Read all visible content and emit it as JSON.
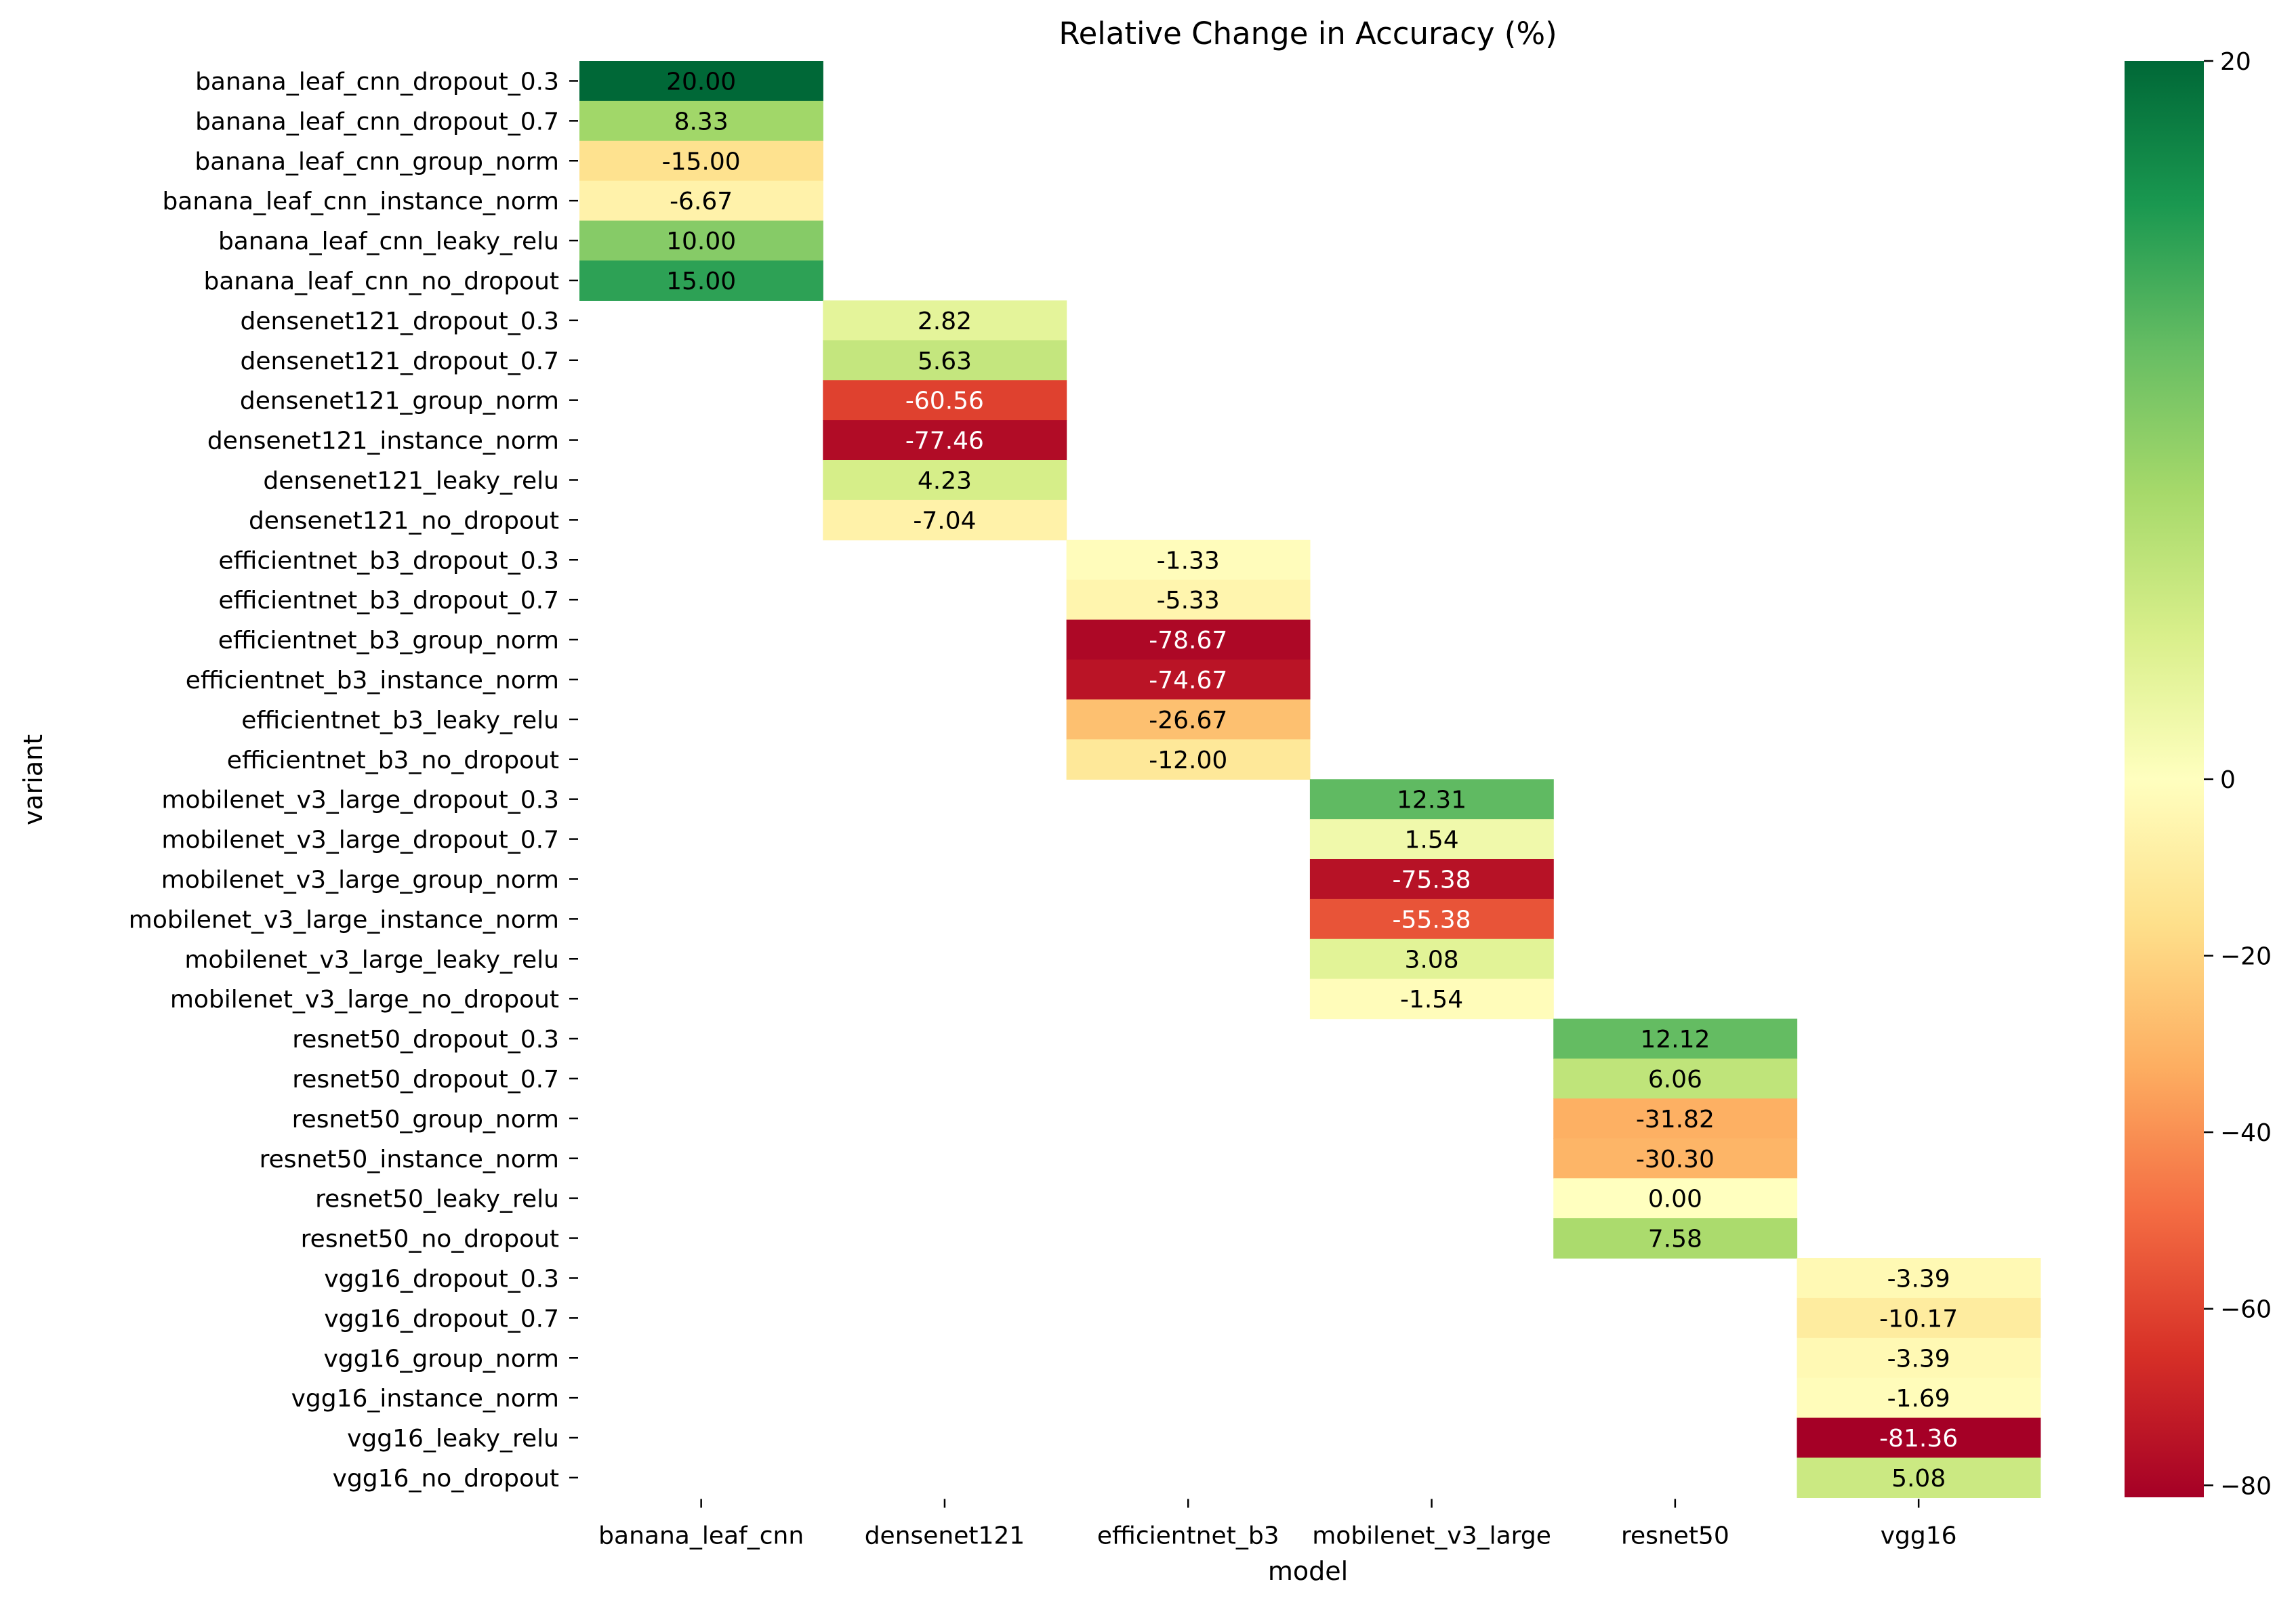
{
  "chart_data": {
    "type": "heatmap",
    "title": "Relative Change in Accuracy (%)",
    "xlabel": "model",
    "ylabel": "variant",
    "columns": [
      "banana_leaf_cnn",
      "densenet121",
      "efficientnet_b3",
      "mobilenet_v3_large",
      "resnet50",
      "vgg16"
    ],
    "rows": [
      "banana_leaf_cnn_dropout_0.3",
      "banana_leaf_cnn_dropout_0.7",
      "banana_leaf_cnn_group_norm",
      "banana_leaf_cnn_instance_norm",
      "banana_leaf_cnn_leaky_relu",
      "banana_leaf_cnn_no_dropout",
      "densenet121_dropout_0.3",
      "densenet121_dropout_0.7",
      "densenet121_group_norm",
      "densenet121_instance_norm",
      "densenet121_leaky_relu",
      "densenet121_no_dropout",
      "efficientnet_b3_dropout_0.3",
      "efficientnet_b3_dropout_0.7",
      "efficientnet_b3_group_norm",
      "efficientnet_b3_instance_norm",
      "efficientnet_b3_leaky_relu",
      "efficientnet_b3_no_dropout",
      "mobilenet_v3_large_dropout_0.3",
      "mobilenet_v3_large_dropout_0.7",
      "mobilenet_v3_large_group_norm",
      "mobilenet_v3_large_instance_norm",
      "mobilenet_v3_large_leaky_relu",
      "mobilenet_v3_large_no_dropout",
      "resnet50_dropout_0.3",
      "resnet50_dropout_0.7",
      "resnet50_group_norm",
      "resnet50_instance_norm",
      "resnet50_leaky_relu",
      "resnet50_no_dropout",
      "vgg16_dropout_0.3",
      "vgg16_dropout_0.7",
      "vgg16_group_norm",
      "vgg16_instance_norm",
      "vgg16_leaky_relu",
      "vgg16_no_dropout"
    ],
    "cells": [
      {
        "row": 0,
        "col": 0,
        "value": 20.0,
        "label": "20.00"
      },
      {
        "row": 1,
        "col": 0,
        "value": 8.33,
        "label": "8.33"
      },
      {
        "row": 2,
        "col": 0,
        "value": -15.0,
        "label": "-15.00"
      },
      {
        "row": 3,
        "col": 0,
        "value": -6.67,
        "label": "-6.67"
      },
      {
        "row": 4,
        "col": 0,
        "value": 10.0,
        "label": "10.00"
      },
      {
        "row": 5,
        "col": 0,
        "value": 15.0,
        "label": "15.00"
      },
      {
        "row": 6,
        "col": 1,
        "value": 2.82,
        "label": "2.82"
      },
      {
        "row": 7,
        "col": 1,
        "value": 5.63,
        "label": "5.63"
      },
      {
        "row": 8,
        "col": 1,
        "value": -60.56,
        "label": "-60.56"
      },
      {
        "row": 9,
        "col": 1,
        "value": -77.46,
        "label": "-77.46"
      },
      {
        "row": 10,
        "col": 1,
        "value": 4.23,
        "label": "4.23"
      },
      {
        "row": 11,
        "col": 1,
        "value": -7.04,
        "label": "-7.04"
      },
      {
        "row": 12,
        "col": 2,
        "value": -1.33,
        "label": "-1.33"
      },
      {
        "row": 13,
        "col": 2,
        "value": -5.33,
        "label": "-5.33"
      },
      {
        "row": 14,
        "col": 2,
        "value": -78.67,
        "label": "-78.67"
      },
      {
        "row": 15,
        "col": 2,
        "value": -74.67,
        "label": "-74.67"
      },
      {
        "row": 16,
        "col": 2,
        "value": -26.67,
        "label": "-26.67"
      },
      {
        "row": 17,
        "col": 2,
        "value": -12.0,
        "label": "-12.00"
      },
      {
        "row": 18,
        "col": 3,
        "value": 12.31,
        "label": "12.31"
      },
      {
        "row": 19,
        "col": 3,
        "value": 1.54,
        "label": "1.54"
      },
      {
        "row": 20,
        "col": 3,
        "value": -75.38,
        "label": "-75.38"
      },
      {
        "row": 21,
        "col": 3,
        "value": -55.38,
        "label": "-55.38"
      },
      {
        "row": 22,
        "col": 3,
        "value": 3.08,
        "label": "3.08"
      },
      {
        "row": 23,
        "col": 3,
        "value": -1.54,
        "label": "-1.54"
      },
      {
        "row": 24,
        "col": 4,
        "value": 12.12,
        "label": "12.12"
      },
      {
        "row": 25,
        "col": 4,
        "value": 6.06,
        "label": "6.06"
      },
      {
        "row": 26,
        "col": 4,
        "value": -31.82,
        "label": "-31.82"
      },
      {
        "row": 27,
        "col": 4,
        "value": -30.3,
        "label": "-30.30"
      },
      {
        "row": 28,
        "col": 4,
        "value": 0.0,
        "label": "0.00"
      },
      {
        "row": 29,
        "col": 4,
        "value": 7.58,
        "label": "7.58"
      },
      {
        "row": 30,
        "col": 5,
        "value": -3.39,
        "label": "-3.39"
      },
      {
        "row": 31,
        "col": 5,
        "value": -10.17,
        "label": "-10.17"
      },
      {
        "row": 32,
        "col": 5,
        "value": -3.39,
        "label": "-3.39"
      },
      {
        "row": 33,
        "col": 5,
        "value": -1.69,
        "label": "-1.69"
      },
      {
        "row": 34,
        "col": 5,
        "value": -81.36,
        "label": "-81.36"
      },
      {
        "row": 35,
        "col": 5,
        "value": 5.08,
        "label": "5.08"
      }
    ],
    "colorbar": {
      "colormap": "RdYlGn",
      "range": [
        -81.36,
        20.0
      ],
      "center": 0,
      "ticks": [
        20,
        0,
        -20,
        -40,
        -60,
        -80
      ],
      "tick_labels": [
        "20",
        "0",
        "−20",
        "−40",
        "−60",
        "−80"
      ]
    }
  }
}
